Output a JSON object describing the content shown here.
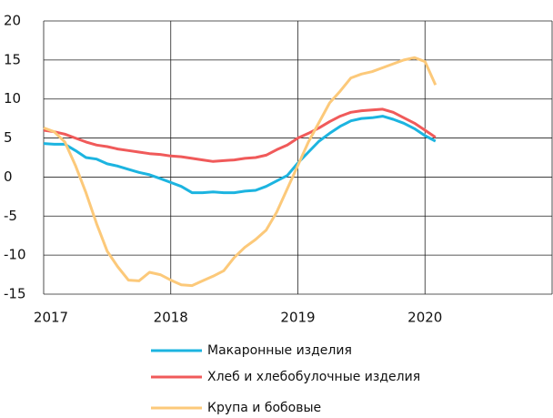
{
  "chart_data": {
    "type": "line",
    "x": [
      2017,
      2017.083,
      2017.167,
      2017.25,
      2017.333,
      2017.417,
      2017.5,
      2017.583,
      2017.667,
      2017.75,
      2017.833,
      2017.917,
      2018,
      2018.083,
      2018.167,
      2018.25,
      2018.333,
      2018.417,
      2018.5,
      2018.583,
      2018.667,
      2018.75,
      2018.833,
      2018.917,
      2019,
      2019.083,
      2019.167,
      2019.25,
      2019.333,
      2019.417,
      2019.5,
      2019.583,
      2019.667,
      2019.75,
      2019.833,
      2019.917,
      2020,
      2020.083
    ],
    "series": [
      {
        "name": "Макаронные изделия",
        "color": "#1cb4e0",
        "values": [
          4.3,
          4.2,
          4.2,
          3.4,
          2.5,
          2.3,
          1.7,
          1.4,
          1.0,
          0.6,
          0.3,
          -0.2,
          -0.7,
          -1.2,
          -2.0,
          -2.0,
          -1.9,
          -2.0,
          -2.0,
          -1.8,
          -1.7,
          -1.2,
          -0.5,
          0.2,
          1.8,
          3.2,
          4.6,
          5.6,
          6.5,
          7.2,
          7.5,
          7.6,
          7.8,
          7.4,
          6.9,
          6.2,
          5.3,
          4.6
        ]
      },
      {
        "name": "Хлеб и хлебобулочные изделия",
        "color": "#f05a5a",
        "values": [
          6.0,
          5.8,
          5.5,
          5.0,
          4.5,
          4.1,
          3.9,
          3.6,
          3.4,
          3.2,
          3.0,
          2.9,
          2.7,
          2.6,
          2.4,
          2.2,
          2.0,
          2.1,
          2.2,
          2.4,
          2.5,
          2.8,
          3.5,
          4.1,
          5.0,
          5.6,
          6.3,
          7.1,
          7.8,
          8.3,
          8.5,
          8.6,
          8.7,
          8.3,
          7.6,
          6.9,
          6.0,
          5.1
        ]
      },
      {
        "name": "Крупа и бобовые",
        "color": "#fcc97a",
        "values": [
          6.3,
          5.8,
          4.5,
          1.5,
          -2.0,
          -6.0,
          -9.5,
          -11.5,
          -13.2,
          -13.3,
          -12.2,
          -12.5,
          -13.2,
          -13.8,
          -13.9,
          -13.3,
          -12.7,
          -12.0,
          -10.3,
          -9.0,
          -8.0,
          -6.8,
          -4.5,
          -1.5,
          1.5,
          4.5,
          7.0,
          9.5,
          11.0,
          12.7,
          13.2,
          13.5,
          14.0,
          14.5,
          15.0,
          15.3,
          14.8,
          11.8
        ]
      }
    ],
    "xlim": [
      2017,
      2021
    ],
    "xticks": [
      2017,
      2018,
      2019,
      2020
    ],
    "ylim": [
      -15,
      20
    ],
    "yticks": [
      -15,
      -10,
      -5,
      0,
      5,
      10,
      15,
      20
    ],
    "grid": true,
    "legend": "bottom"
  }
}
